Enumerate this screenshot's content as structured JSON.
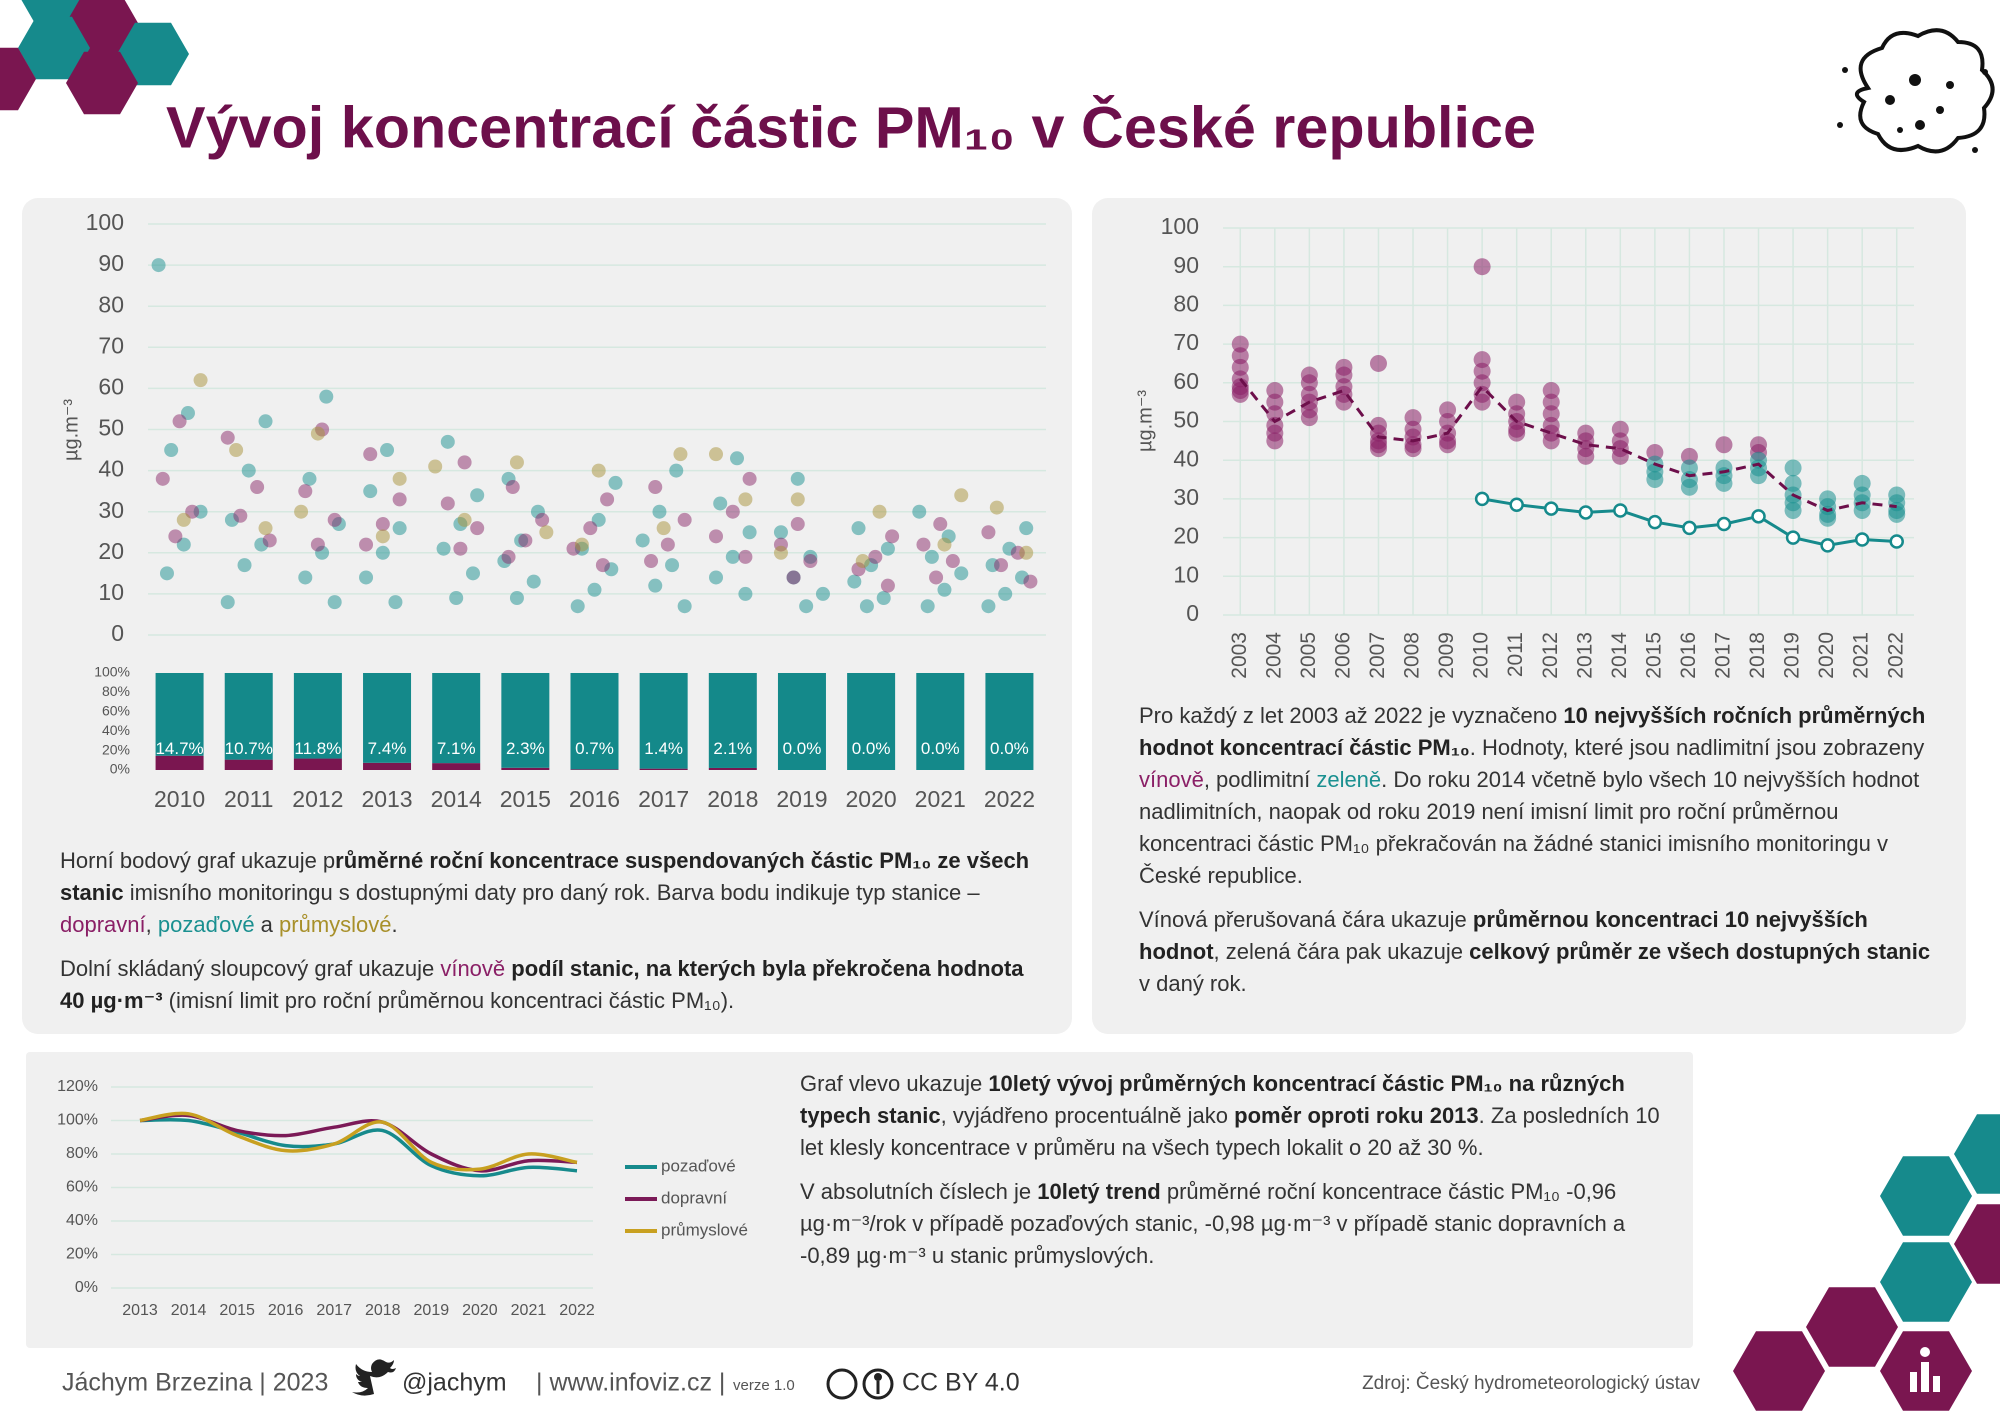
{
  "title": "Vývoj koncentrací částic PM₁₀ v České republice",
  "chart_data": [
    {
      "type": "strip",
      "ylabel": "µg.m⁻³",
      "ylim": [
        0,
        100
      ],
      "yticks": [
        0,
        10,
        20,
        30,
        40,
        50,
        60,
        70,
        80,
        90,
        100
      ],
      "grid": true,
      "xlim": [
        2009.5,
        2022.5
      ],
      "series": [
        {
          "color": "#1a9090",
          "x": [
            2010,
            2010,
            2010,
            2010,
            2010,
            2010,
            2011,
            2011,
            2011,
            2011,
            2011,
            2011,
            2012,
            2012,
            2012,
            2012,
            2012,
            2012,
            2013,
            2013,
            2013,
            2013,
            2013,
            2013,
            2014,
            2014,
            2014,
            2014,
            2014,
            2014,
            2015,
            2015,
            2015,
            2015,
            2015,
            2015,
            2016,
            2016,
            2016,
            2016,
            2016,
            2016,
            2017,
            2017,
            2017,
            2017,
            2017,
            2017,
            2018,
            2018,
            2018,
            2018,
            2018,
            2018,
            2019,
            2019,
            2019,
            2019,
            2019,
            2019,
            2020,
            2020,
            2020,
            2020,
            2020,
            2020,
            2021,
            2021,
            2021,
            2021,
            2021,
            2021,
            2022,
            2022,
            2022,
            2022,
            2022,
            2022
          ],
          "values": [
            90,
            54,
            45,
            30,
            22,
            15,
            52,
            40,
            28,
            22,
            17,
            8,
            58,
            38,
            27,
            20,
            14,
            8,
            45,
            35,
            26,
            20,
            14,
            8,
            47,
            34,
            27,
            21,
            15,
            9,
            38,
            30,
            23,
            18,
            13,
            9,
            37,
            28,
            21,
            16,
            11,
            7,
            40,
            30,
            23,
            17,
            12,
            7,
            43,
            32,
            25,
            19,
            14,
            10,
            38,
            25,
            19,
            14,
            10,
            7,
            26,
            21,
            17,
            13,
            9,
            7,
            30,
            24,
            19,
            15,
            11,
            7,
            26,
            21,
            17,
            14,
            10,
            7
          ]
        },
        {
          "color": "#8a2a6a",
          "x": [
            2010,
            2010,
            2010,
            2010,
            2011,
            2011,
            2011,
            2011,
            2012,
            2012,
            2012,
            2012,
            2013,
            2013,
            2013,
            2013,
            2014,
            2014,
            2014,
            2014,
            2015,
            2015,
            2015,
            2015,
            2016,
            2016,
            2016,
            2016,
            2017,
            2017,
            2017,
            2017,
            2018,
            2018,
            2018,
            2018,
            2019,
            2019,
            2019,
            2019,
            2020,
            2020,
            2020,
            2020,
            2021,
            2021,
            2021,
            2021,
            2022,
            2022,
            2022,
            2022
          ],
          "values": [
            52,
            38,
            30,
            24,
            48,
            36,
            29,
            23,
            50,
            35,
            28,
            22,
            44,
            33,
            27,
            22,
            42,
            32,
            26,
            21,
            36,
            28,
            23,
            19,
            33,
            26,
            21,
            17,
            36,
            28,
            22,
            18,
            38,
            30,
            24,
            19,
            27,
            22,
            18,
            14,
            24,
            19,
            16,
            12,
            27,
            22,
            18,
            14,
            25,
            20,
            17,
            13
          ]
        },
        {
          "color": "#a8923a",
          "x": [
            2010,
            2010,
            2011,
            2011,
            2012,
            2012,
            2013,
            2013,
            2014,
            2014,
            2015,
            2015,
            2016,
            2016,
            2017,
            2017,
            2018,
            2018,
            2019,
            2019,
            2020,
            2020,
            2021,
            2021,
            2022,
            2022
          ],
          "values": [
            62,
            28,
            45,
            26,
            49,
            30,
            38,
            24,
            41,
            28,
            42,
            25,
            40,
            22,
            44,
            26,
            44,
            33,
            33,
            20,
            30,
            18,
            34,
            22,
            31,
            20
          ]
        }
      ]
    },
    {
      "type": "bar",
      "stacked": true,
      "categories": [
        "2010",
        "2011",
        "2012",
        "2013",
        "2014",
        "2015",
        "2016",
        "2017",
        "2018",
        "2019",
        "2020",
        "2021",
        "2022"
      ],
      "ylim": [
        0,
        100
      ],
      "yticks": [
        {
          "value": 0,
          "label": "0%"
        },
        {
          "value": 20,
          "label": "20%"
        },
        {
          "value": 40,
          "label": "40%"
        },
        {
          "value": 60,
          "label": "60%"
        },
        {
          "value": 80,
          "label": "80%"
        },
        {
          "value": 100,
          "label": "100%"
        }
      ],
      "series": [
        {
          "color": "#7a1650",
          "values": [
            14.7,
            10.7,
            11.8,
            7.4,
            7.1,
            2.3,
            0.7,
            1.4,
            2.1,
            0,
            0,
            0,
            0
          ],
          "value_labels": [
            "14.7%",
            "10.7%",
            "11.8%",
            "7.4%",
            "7.1%",
            "2.3%",
            "0.7%",
            "1.4%",
            "2.1%",
            "0.0%",
            "0.0%",
            "0.0%",
            "0.0%"
          ]
        },
        {
          "color": "#14898a",
          "values": [
            85.3,
            89.3,
            88.2,
            92.6,
            92.9,
            97.7,
            99.3,
            98.6,
            97.9,
            100,
            100,
            100,
            100
          ]
        }
      ]
    },
    {
      "type": "scatter",
      "ylabel": "µg.m⁻³",
      "ylim": [
        0,
        100
      ],
      "yticks": [
        0,
        10,
        20,
        30,
        40,
        50,
        60,
        70,
        80,
        90,
        100
      ],
      "grid": true,
      "xgrid": true,
      "xlim": [
        2002.5,
        2022.5
      ],
      "x": [
        2003,
        2004,
        2005,
        2006,
        2007,
        2008,
        2009,
        2010,
        2011,
        2012,
        2013,
        2014,
        2015,
        2016,
        2017,
        2018,
        2019,
        2020,
        2021,
        2022
      ],
      "series": [
        {
          "color": "#8a1f66",
          "x": [
            2003,
            2003,
            2003,
            2003,
            2003,
            2003,
            2003,
            2004,
            2004,
            2004,
            2004,
            2004,
            2004,
            2005,
            2005,
            2005,
            2005,
            2005,
            2005,
            2006,
            2006,
            2006,
            2006,
            2006,
            2007,
            2007,
            2007,
            2007,
            2007,
            2007,
            2008,
            2008,
            2008,
            2008,
            2008,
            2009,
            2009,
            2009,
            2009,
            2009,
            2010,
            2010,
            2010,
            2010,
            2010,
            2010,
            2011,
            2011,
            2011,
            2011,
            2011,
            2012,
            2012,
            2012,
            2012,
            2012,
            2012,
            2013,
            2013,
            2013,
            2013,
            2014,
            2014,
            2014,
            2014,
            2015,
            2016,
            2017,
            2018,
            2018
          ],
          "values": [
            70,
            67,
            64,
            61,
            59,
            58,
            57,
            58,
            55,
            52,
            49,
            47,
            45,
            62,
            60,
            57,
            55,
            53,
            51,
            64,
            62,
            59,
            57,
            55,
            65,
            49,
            47,
            45,
            44,
            43,
            51,
            48,
            46,
            44,
            43,
            53,
            50,
            47,
            45,
            44,
            90,
            66,
            63,
            60,
            57,
            55,
            55,
            52,
            50,
            48,
            47,
            58,
            55,
            52,
            49,
            47,
            45,
            47,
            45,
            43,
            41,
            48,
            45,
            43,
            41,
            42,
            41,
            44,
            44,
            42
          ]
        },
        {
          "color": "#1a9090",
          "x": [
            2015,
            2015,
            2015,
            2016,
            2016,
            2016,
            2017,
            2017,
            2017,
            2018,
            2018,
            2018,
            2019,
            2019,
            2019,
            2019,
            2019,
            2020,
            2020,
            2020,
            2020,
            2021,
            2021,
            2021,
            2021,
            2022,
            2022,
            2022,
            2022
          ],
          "values": [
            39,
            37,
            35,
            38,
            35,
            33,
            38,
            36,
            34,
            40,
            38,
            36,
            38,
            34,
            31,
            29,
            27,
            30,
            28,
            26,
            25,
            34,
            31,
            29,
            27,
            31,
            29,
            27,
            26
          ]
        },
        {
          "color": "#6d0f4b",
          "dashed": true,
          "values": [
            61,
            50,
            55,
            58,
            46,
            45,
            47,
            59,
            50,
            47,
            44,
            43,
            39,
            36,
            37,
            39,
            31,
            27,
            29,
            28
          ]
        },
        {
          "color": "#168a8c",
          "markers": true,
          "values": [
            null,
            null,
            null,
            null,
            null,
            null,
            null,
            30,
            28.5,
            27.5,
            26.5,
            27,
            24,
            22.5,
            23.5,
            25.5,
            20,
            18,
            19.5,
            19
          ]
        }
      ]
    },
    {
      "type": "line",
      "x": [
        2013,
        2014,
        2015,
        2016,
        2017,
        2018,
        2019,
        2020,
        2021,
        2022
      ],
      "xlim": [
        2013,
        2022
      ],
      "ylim": [
        0,
        120
      ],
      "yticks": [
        {
          "value": 0,
          "label": "0%"
        },
        {
          "value": 20,
          "label": "20%"
        },
        {
          "value": 40,
          "label": "40%"
        },
        {
          "value": 60,
          "label": "60%"
        },
        {
          "value": 80,
          "label": "80%"
        },
        {
          "value": 100,
          "label": "100%"
        },
        {
          "value": 120,
          "label": "120%"
        }
      ],
      "grid": true,
      "series": [
        {
          "name": "pozaďové",
          "color": "#168a8c",
          "values": [
            100,
            100,
            93,
            85,
            86,
            94,
            73,
            67,
            72,
            70
          ]
        },
        {
          "name": "dopravní",
          "color": "#7b1a57",
          "values": [
            100,
            103,
            94,
            91,
            96,
            99,
            80,
            70,
            76,
            75
          ]
        },
        {
          "name": "průmyslové",
          "color": "#c8a020",
          "values": [
            100,
            104,
            91,
            82,
            86,
            99,
            75,
            71,
            80,
            75
          ]
        }
      ]
    }
  ],
  "texts": {
    "left": [
      [
        "Horní bodový graf ukazuje p",
        "růměrné roční koncentrace suspendovaných částic PM₁₀ ze všech stanic",
        " imisního monitoringu s dostupnými daty pro daný rok. Barva bodu indikuje typ stanice – ",
        "dopravní",
        ", ",
        "pozaďové",
        " a ",
        "průmyslové",
        "."
      ],
      [
        "Dolní skládaný sloupcový graf ukazuje ",
        "vínově",
        " podíl stanic, na kterých byla překročena hodnota 40 µg·m⁻³",
        " (imisní limit pro roční průměrnou koncentraci částic PM₁₀)."
      ]
    ],
    "right": [
      [
        "Pro každý z let 2003 až 2022 je vyznačeno ",
        "10 nejvyšších ročních průměrných hodnot koncentrací částic PM₁₀",
        ". Hodnoty, které jsou nadlimitní jsou zobrazeny ",
        "vínově",
        ", podlimitní ",
        "zeleně",
        ". Do roku 2014 včetně bylo všech 10 nejvyšších hodnot nadlimitních, naopak od roku 2019 není imisní limit pro roční průměrnou koncentraci částic PM₁₀ překračován na žádné stanici imisního monitoringu v České republice."
      ],
      [
        "Vínová přerušovaná čára ukazuje ",
        "průměrnou koncentraci 10 nejvyšších hodnot",
        ", zelená čára pak ukazuje ",
        "celkový průměr ze všech dostupných stanic",
        " v daný rok."
      ]
    ],
    "bottom": [
      [
        "Graf vlevo ukazuje ",
        "10letý vývoj průměrných koncentrací částic PM₁₀ na různých typech stanic",
        ", vyjádřeno procentuálně jako ",
        "poměr oproti roku 2013",
        ". Za posledních 10 let klesly koncentrace v průměru na všech typech lokalit o 20 až 30 %."
      ],
      [
        "V absolutních číslech je ",
        "10letý trend",
        " průměrné roční koncentrace částic PM₁₀ -0,96 µg·m⁻³/rok v případě pozaďových stanic, -0,98 µg·m⁻³ v případě stanic dopravních a -0,89 µg·m⁻³ u stanic průmyslových."
      ]
    ]
  },
  "footer": {
    "author": "Jáchym Brzezina | 2023",
    "twitter": "@jachym",
    "web": "| www.infoviz.cz |",
    "version": "verze 1.0",
    "license": "CC BY 4.0",
    "source": "Zdroj: Český hydrometeorologický ústav"
  }
}
